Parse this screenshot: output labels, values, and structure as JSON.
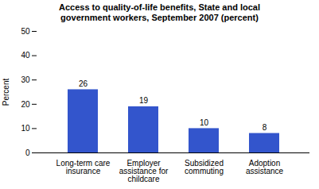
{
  "chart_data": {
    "type": "bar",
    "title": "Access to quality-of-life benefits, State and local\ngovernment workers, September 2007  (percent)",
    "categories": [
      "Long-term care\ninsurance",
      "Employer\nassistance for\nchildcare",
      "Subsidized\ncommuting",
      "Adoption\nassistance"
    ],
    "values": [
      26,
      19,
      10,
      8
    ],
    "color": "#3355cc",
    "ylabel": "Percent",
    "ylim": [
      0,
      50
    ],
    "yticks": [
      0,
      10,
      20,
      30,
      40,
      50
    ],
    "grid": false,
    "data_labels": true
  }
}
